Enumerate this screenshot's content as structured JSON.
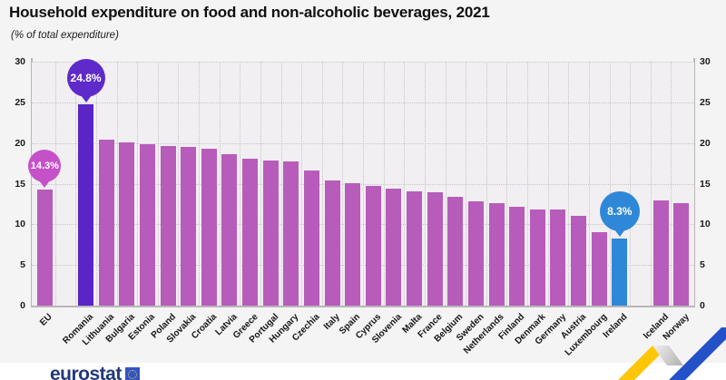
{
  "header": {
    "title": "Household expenditure on food and non-alcoholic beverages, 2021",
    "subtitle": "(% of total expenditure)"
  },
  "chart_data": {
    "type": "bar",
    "title": "Household expenditure on food and non-alcoholic beverages, 2021",
    "subtitle": "(% of total expenditure)",
    "ylabel": "% of total expenditure",
    "ylim": [
      0,
      30
    ],
    "y_ticks": [
      0,
      5,
      10,
      15,
      20,
      25,
      30
    ],
    "grid": true,
    "legend": "none",
    "default_bar_color": "#b85cbc",
    "bars": [
      {
        "label": "EU",
        "value": 14.3,
        "callout": {
          "text": "14.3%",
          "color": "#c551c9",
          "diameter": 36,
          "font": 11
        }
      },
      {
        "label": "Romania",
        "value": 24.8,
        "color": "#5a24c6",
        "spacer_before": true,
        "callout": {
          "text": "24.8%",
          "color": "#5e2aca",
          "diameter": 42,
          "font": 12
        }
      },
      {
        "label": "Lithuania",
        "value": 20.4
      },
      {
        "label": "Bulgaria",
        "value": 20.1
      },
      {
        "label": "Estonia",
        "value": 19.9
      },
      {
        "label": "Poland",
        "value": 19.6
      },
      {
        "label": "Slovakia",
        "value": 19.5
      },
      {
        "label": "Croatia",
        "value": 19.3
      },
      {
        "label": "Latvia",
        "value": 18.6
      },
      {
        "label": "Greece",
        "value": 18.1
      },
      {
        "label": "Portugal",
        "value": 17.9
      },
      {
        "label": "Hungary",
        "value": 17.7
      },
      {
        "label": "Czechia",
        "value": 16.6
      },
      {
        "label": "Italy",
        "value": 15.4
      },
      {
        "label": "Spain",
        "value": 15.1
      },
      {
        "label": "Cyprus",
        "value": 14.7
      },
      {
        "label": "Slovenia",
        "value": 14.4
      },
      {
        "label": "Malta",
        "value": 14.1
      },
      {
        "label": "France",
        "value": 13.9
      },
      {
        "label": "Belgium",
        "value": 13.4
      },
      {
        "label": "Sweden",
        "value": 12.8
      },
      {
        "label": "Netherlands",
        "value": 12.6
      },
      {
        "label": "Finland",
        "value": 12.2
      },
      {
        "label": "Denmark",
        "value": 11.8
      },
      {
        "label": "Germany",
        "value": 11.8
      },
      {
        "label": "Austria",
        "value": 11.0
      },
      {
        "label": "Luxembourg",
        "value": 9.0
      },
      {
        "label": "Ireland",
        "value": 8.3,
        "color": "#2f87d8",
        "callout": {
          "text": "8.3%",
          "color": "#2f87d8",
          "diameter": 44,
          "font": 12
        }
      },
      {
        "label": "Iceland",
        "value": 12.9,
        "spacer_before": true
      },
      {
        "label": "Norway",
        "value": 12.6
      }
    ]
  },
  "footer": {
    "logo_text": "eurostat"
  },
  "colors": {
    "page_background": "#f5f4f5",
    "plot_background": "#f1eff1",
    "axis": "#b9b5b9",
    "gridline": "#c9c4c9",
    "ribbon_yellow": "#fdc608",
    "ribbon_blue": "#2351c8",
    "logo_navy": "#20397d"
  }
}
